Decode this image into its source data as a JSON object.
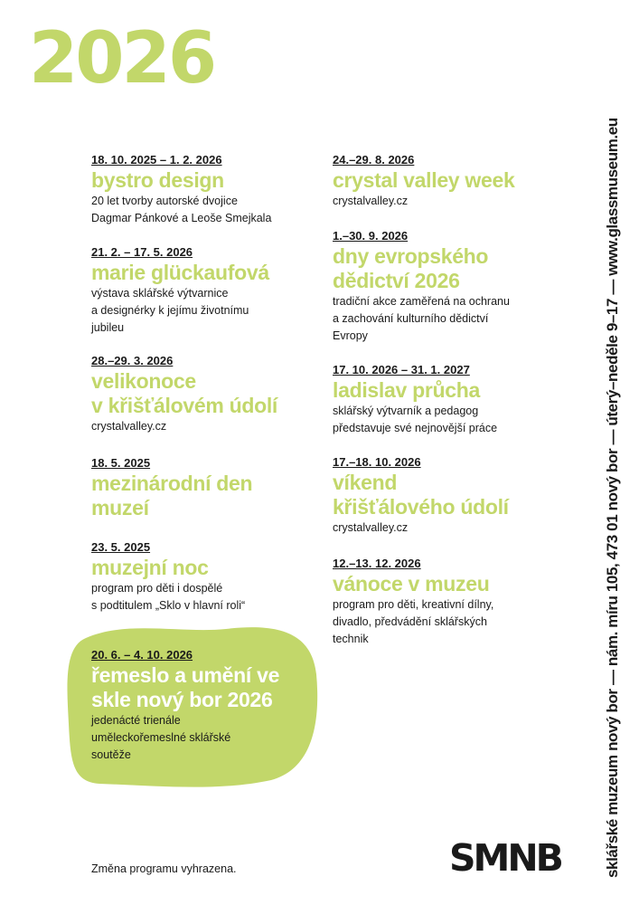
{
  "year": "2026",
  "accent_color": "#c2d76a",
  "events_left": [
    {
      "date": "18. 10. 2025 – 1. 2. 2026",
      "title": "bystro design",
      "desc": [
        "20 let tvorby autorské dvojice",
        "Dagmar Pánkové a Leoše Smejkala"
      ]
    },
    {
      "date": "21. 2. – 17. 5. 2026",
      "title": "marie glückaufová",
      "desc": [
        "výstava sklářské výtvarnice",
        "a designérky k jejímu životnímu",
        "jubileu"
      ]
    },
    {
      "date": "28.–29. 3. 2026",
      "title": [
        "velikonoce",
        "v křišťálovém údolí"
      ],
      "desc": [
        "crystalvalley.cz"
      ]
    },
    {
      "date": "18. 5. 2025",
      "title": [
        "mezinárodní den",
        "muzeí"
      ],
      "desc": []
    },
    {
      "date": "23. 5. 2025",
      "title": "muzejní noc",
      "desc": [
        "program pro děti i dospělé",
        "s podtitulem „Sklo v hlavní roli“"
      ]
    },
    {
      "date": "20. 6. – 4. 10. 2026",
      "title": [
        "řemeslo a umění ve",
        "skle nový bor 2026"
      ],
      "desc": [
        "jedenácté trienále",
        "uměleckořemeslné sklářské",
        "soutěže"
      ],
      "highlighted": true
    }
  ],
  "events_right": [
    {
      "date": "24.–29. 8. 2026",
      "title": "crystal valley week",
      "desc": [
        "crystalvalley.cz"
      ]
    },
    {
      "date": "1.–30. 9. 2026",
      "title": [
        "dny evropského",
        "dědictví 2026"
      ],
      "desc": [
        "tradiční akce zaměřená na ochranu",
        "a zachování kulturního dědictví",
        "Evropy"
      ]
    },
    {
      "date": "17. 10. 2026 – 31. 1. 2027",
      "title": "ladislav průcha",
      "desc": [
        "sklářský výtvarník a pedagog",
        "představuje své nejnovější práce"
      ]
    },
    {
      "date": "17.–18. 10. 2026",
      "title": [
        "víkend",
        "křišťálového údolí"
      ],
      "desc": [
        "crystalvalley.cz"
      ]
    },
    {
      "date": "12.–13. 12. 2026",
      "title": "vánoce v muzeu",
      "desc": [
        "program pro děti, kreativní dílny,",
        "divadlo, předvádění sklářských",
        "technik"
      ]
    }
  ],
  "sidebar_text": "sklářské muzeum nový bor — nám. míru 105, 473 01 nový bor — úterý–neděle  9–17 — www.glassmuseum.eu",
  "footer_note": "Změna programu vyhrazena.",
  "logo": "SMNB"
}
